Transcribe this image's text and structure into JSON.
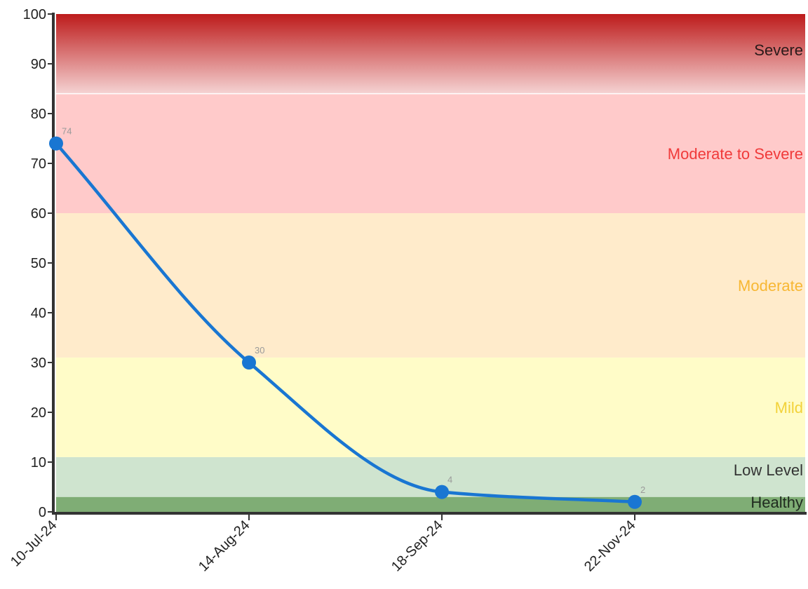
{
  "chart_data": {
    "type": "line",
    "title": "",
    "xlabel": "",
    "ylabel": "",
    "ylim": [
      0,
      100
    ],
    "yticks": [
      0,
      10,
      20,
      30,
      40,
      50,
      60,
      70,
      80,
      90,
      100
    ],
    "categories": [
      "10-Jul-24",
      "14-Aug-24",
      "18-Sep-24",
      "22-Nov-24"
    ],
    "values": [
      74,
      30,
      4,
      2
    ],
    "line_color": "#1976d2",
    "grid": false,
    "bands": [
      {
        "label": "Healthy",
        "from": 0,
        "to": 3,
        "fill": "#7fad75",
        "text_color": "#1f2a1f"
      },
      {
        "label": "Low Level",
        "from": 3,
        "to": 11,
        "fill": "#cfe4cf",
        "text_color": "#333333"
      },
      {
        "label": "Mild",
        "from": 11,
        "to": 31,
        "fill": "#fffcc8",
        "text_color": "#f2d23a"
      },
      {
        "label": "Moderate",
        "from": 31,
        "to": 60,
        "fill": "#ffebcb",
        "text_color": "#f7b733"
      },
      {
        "label": "Moderate to Severe",
        "from": 60,
        "to": 84,
        "fill": "#ffcaca",
        "text_color": "#f03a3a"
      },
      {
        "label": "Severe",
        "from": 84,
        "to": 100,
        "fill": "gradient",
        "gradient_top": "#bd1b1b",
        "gradient_bottom": "#f5d3d3",
        "text_color": "#2a1a1a"
      }
    ]
  }
}
